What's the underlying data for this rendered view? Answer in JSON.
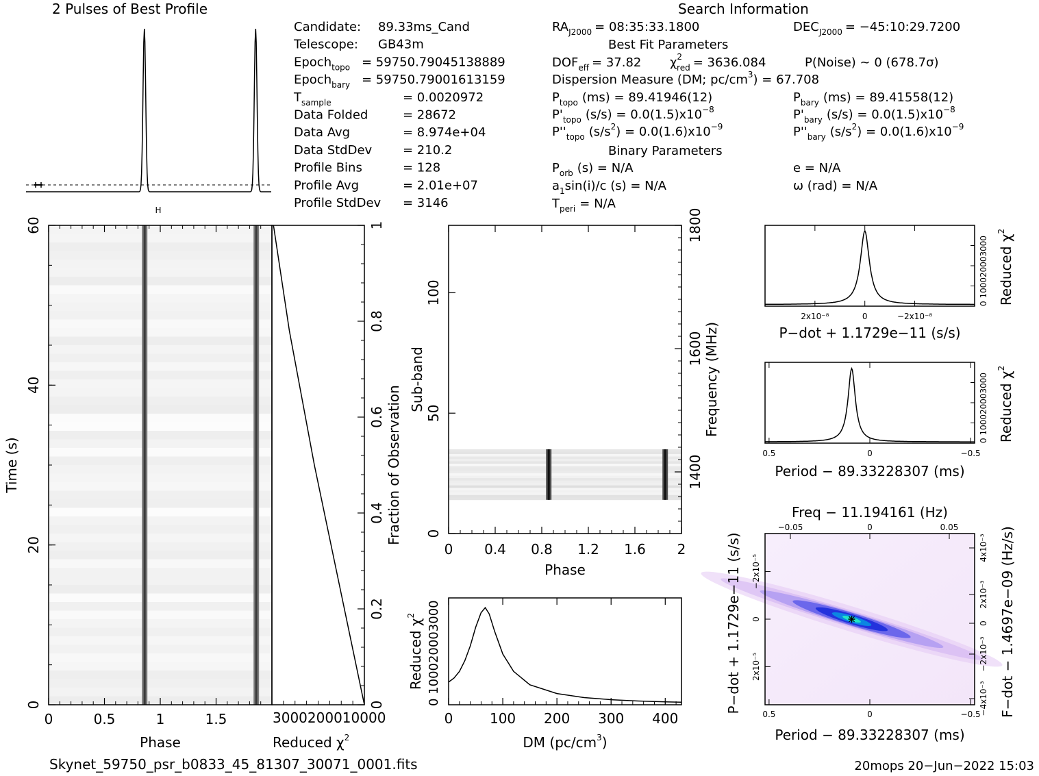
{
  "header": {
    "profile_title": "2 Pulses of Best Profile",
    "search_title": "Search Information",
    "best_fit_title": "Best Fit Parameters",
    "binary_title": "Binary Parameters"
  },
  "info_left": [
    {
      "label": "Candidate:",
      "value": "89.33ms_Cand"
    },
    {
      "label": "Telescope:",
      "value": "GB43m"
    },
    {
      "label": "Epoch",
      "sub": "topo",
      "value": "= 59750.79045138889"
    },
    {
      "label": "Epoch",
      "sub": "bary",
      "value": "= 59750.79001613159"
    },
    {
      "label": "T",
      "sub": "sample",
      "value": "=   0.0020972"
    },
    {
      "label": "Data Folded",
      "value": "=   28672"
    },
    {
      "label": "Data Avg",
      "value": "=   8.974e+04"
    },
    {
      "label": "Data StdDev",
      "value": "=   210.2"
    },
    {
      "label": "Profile Bins",
      "value": "=   128"
    },
    {
      "label": "Profile Avg",
      "value": "=   2.01e+07"
    },
    {
      "label": "Profile StdDev",
      "value": "=   3146"
    }
  ],
  "search_info": {
    "ra": {
      "label": "RA",
      "sub": "J2000",
      "value": "= 08:35:33.1800"
    },
    "dec": {
      "label": "DEC",
      "sub": "J2000",
      "value": "= −45:10:29.7200"
    },
    "dof": {
      "label": "DOF",
      "sub": "eff",
      "value": "= 37.82"
    },
    "chi2": {
      "label": "χ",
      "sup": "2",
      "sub": "red",
      "value": "= 3636.084"
    },
    "pnoise": "P(Noise) ~ 0    (678.7σ)",
    "dm_line": {
      "text": "Dispersion Measure (DM; pc/cm",
      "sup": "3",
      "value": ") = 67.708"
    },
    "p_topo": {
      "label": "P",
      "sub": "topo",
      "value": "(ms) =  89.41946(12)"
    },
    "p_bary": {
      "label": "P",
      "sub": "bary",
      "value": "(ms) =  89.41558(12)"
    },
    "pd_topo": {
      "label": "P'",
      "sub": "topo",
      "value": "(s/s) = 0.0(1.5)x10",
      "sup": "−8"
    },
    "pd_bary": {
      "label": "P'",
      "sub": "bary",
      "value": "(s/s) = 0.0(1.5)x10",
      "sup": "−8"
    },
    "pdd_topo": {
      "label": "P''",
      "sub": "topo",
      "value": "(s/s",
      "sup1": "2",
      "value2": ") = 0.0(1.6)x10",
      "sup": "−9"
    },
    "pdd_bary": {
      "label": "P''",
      "sub": "bary",
      "value": "(s/s",
      "sup1": "2",
      "value2": ") = 0.0(1.6)x10",
      "sup": "−9"
    },
    "porb": {
      "label": "P",
      "sub": "orb",
      "value": "(s) = N/A"
    },
    "ecc": "e = N/A",
    "a1": {
      "label": "a",
      "sub": "1",
      "value": "sin(i)/c (s) = N/A"
    },
    "omega": "ω (rad) = N/A",
    "tperi": {
      "label": "T",
      "sub": "peri",
      "value": "= N/A"
    }
  },
  "footer": {
    "filename": "Skynet_59750_psr_b0833_45_81307_30071_0001.fits",
    "stamp": "20mops 20−Jun−2022 15:03"
  },
  "chart_data": [
    {
      "id": "profile",
      "type": "line",
      "title": "2 Pulses of Best Profile",
      "x_range": [
        0,
        2
      ],
      "peaks_phase": [
        0.86,
        1.86
      ],
      "baseline": 0.0,
      "peak_height": 1.0
    },
    {
      "id": "time_phase",
      "type": "heatmap",
      "xlabel": "Phase",
      "ylabel": "Time (s)",
      "x_ticks": [
        "0",
        "0.5",
        "1",
        "1.5"
      ],
      "x_tick_values": [
        0,
        0.5,
        1,
        1.5
      ],
      "y_ticks": [
        "0",
        "20",
        "40",
        "60"
      ],
      "y_tick_values": [
        0,
        20,
        40,
        60
      ],
      "xlim": [
        0,
        2
      ],
      "ylim": [
        0,
        60
      ],
      "pulse_phases": [
        0.86,
        1.86
      ]
    },
    {
      "id": "chi2_vs_time",
      "type": "line",
      "xlabel": "Reduced χ",
      "xlabel_sup": "2",
      "ylabel": "Fraction of Observation",
      "x_tick_label": "3000200010000",
      "y_ticks": [
        "0",
        "0.2",
        "0.4",
        "0.6",
        "0.8",
        "1"
      ],
      "y_tick_values": [
        0,
        0.2,
        0.4,
        0.6,
        0.8,
        1.0
      ],
      "x": [
        0,
        1000,
        2000,
        3000,
        3636
      ],
      "y": [
        0,
        0.25,
        0.5,
        0.78,
        1.0
      ]
    },
    {
      "id": "subband_phase",
      "type": "heatmap",
      "xlabel": "Phase",
      "ylabel": "Sub-band",
      "ylabel_right": "Frequency (MHz)",
      "x_ticks": [
        "0",
        "0.4",
        "0.8",
        "1.2",
        "1.6",
        "2"
      ],
      "x_tick_values": [
        0,
        0.4,
        0.8,
        1.2,
        1.6,
        2.0
      ],
      "y_ticks": [
        "0",
        "50",
        "100"
      ],
      "y_tick_values": [
        0,
        50,
        100
      ],
      "y_right_ticks": [
        "1400",
        "1600",
        "1800"
      ],
      "xlim": [
        0,
        2
      ],
      "ylim": [
        0,
        128
      ],
      "band_subbands": [
        14,
        35
      ],
      "pulse_phases": [
        0.86,
        1.86
      ]
    },
    {
      "id": "dm_chi2",
      "type": "line",
      "xlabel": "DM (pc/cm",
      "xlabel_sup": "3",
      "ylabel": "Reduced χ",
      "ylabel_sup": "2",
      "x_ticks": [
        "0",
        "100",
        "200",
        "300",
        "400"
      ],
      "x_tick_values": [
        0,
        100,
        200,
        300,
        400
      ],
      "y_tick_label": "0 100020003000",
      "xlim": [
        0,
        430
      ],
      "ylim": [
        0,
        4000
      ],
      "x": [
        0,
        10,
        20,
        30,
        40,
        50,
        60,
        67.7,
        75,
        85,
        100,
        120,
        150,
        200,
        250,
        300,
        350,
        400,
        430
      ],
      "y": [
        850,
        1000,
        1250,
        1650,
        2200,
        2900,
        3450,
        3636,
        3400,
        2750,
        1900,
        1250,
        750,
        420,
        270,
        190,
        140,
        110,
        95
      ]
    },
    {
      "id": "pdot_chi2",
      "type": "line",
      "xlabel": "P−dot + 1.1729e−11 (s/s)",
      "ylabel": "Reduced χ",
      "ylabel_sup": "2",
      "x_ticks": [
        "2x10⁻⁸",
        "0",
        "−2x10⁻⁸"
      ],
      "x_tick_values": [
        2e-08,
        0,
        -2e-08
      ],
      "y_tick_label": "0 100020003000",
      "xlim": [
        4e-08,
        -4.4e-08
      ],
      "ylim": [
        0,
        4000
      ],
      "x": [
        4e-08,
        2e-08,
        1e-08,
        5e-09,
        2e-09,
        0,
        -2e-09,
        -5e-09,
        -1e-08,
        -2e-08,
        -4.4e-08
      ],
      "y": [
        100,
        180,
        380,
        900,
        2200,
        3636,
        2200,
        900,
        380,
        180,
        100
      ]
    },
    {
      "id": "period_chi2",
      "type": "line",
      "xlabel": "Period − 89.33228307 (ms)",
      "ylabel": "Reduced χ",
      "ylabel_sup": "2",
      "x_ticks": [
        "0.5",
        "0",
        "−0.5"
      ],
      "x_tick_values": [
        0.5,
        0,
        -0.5
      ],
      "y_tick_label": "0 100020003000",
      "xlim": [
        0.52,
        -0.52
      ],
      "ylim": [
        0,
        4000
      ],
      "x": [
        0.52,
        0.3,
        0.2,
        0.15,
        0.12,
        0.1,
        0.09,
        0.08,
        0.05,
        0.0,
        -0.1,
        -0.3,
        -0.52
      ],
      "y": [
        90,
        200,
        420,
        900,
        1800,
        3000,
        3636,
        3000,
        1300,
        500,
        220,
        110,
        80
      ]
    },
    {
      "id": "period_pdot_plane",
      "type": "heatmap",
      "title_top": "Freq − 11.194161 (Hz)",
      "xlabel": "Period − 89.33228307 (ms)",
      "ylabel": "P−dot + 1.1729e−11 (s/s)",
      "ylabel_right": "F−dot − 1.4697e−09 (Hz/s)",
      "x_ticks": [
        "0.5",
        "0",
        "−0.5"
      ],
      "x_tick_values": [
        0.5,
        0,
        -0.5
      ],
      "top_ticks": [
        "−0.05",
        "0",
        "0.05"
      ],
      "top_tick_values": [
        -0.05,
        0,
        0.05
      ],
      "y_ticks": [
        "−2x10⁻⁵",
        "0",
        "2x10⁻⁵"
      ],
      "y_tick_values": [
        -2e-05,
        0,
        2e-05
      ],
      "y_right_ticks": [
        "4x10⁻³",
        "2x10⁻³",
        "0",
        "−2x10⁻³",
        "−4x10⁻³"
      ],
      "best_point": {
        "period": 0.09,
        "pdot": 0.0
      }
    }
  ]
}
